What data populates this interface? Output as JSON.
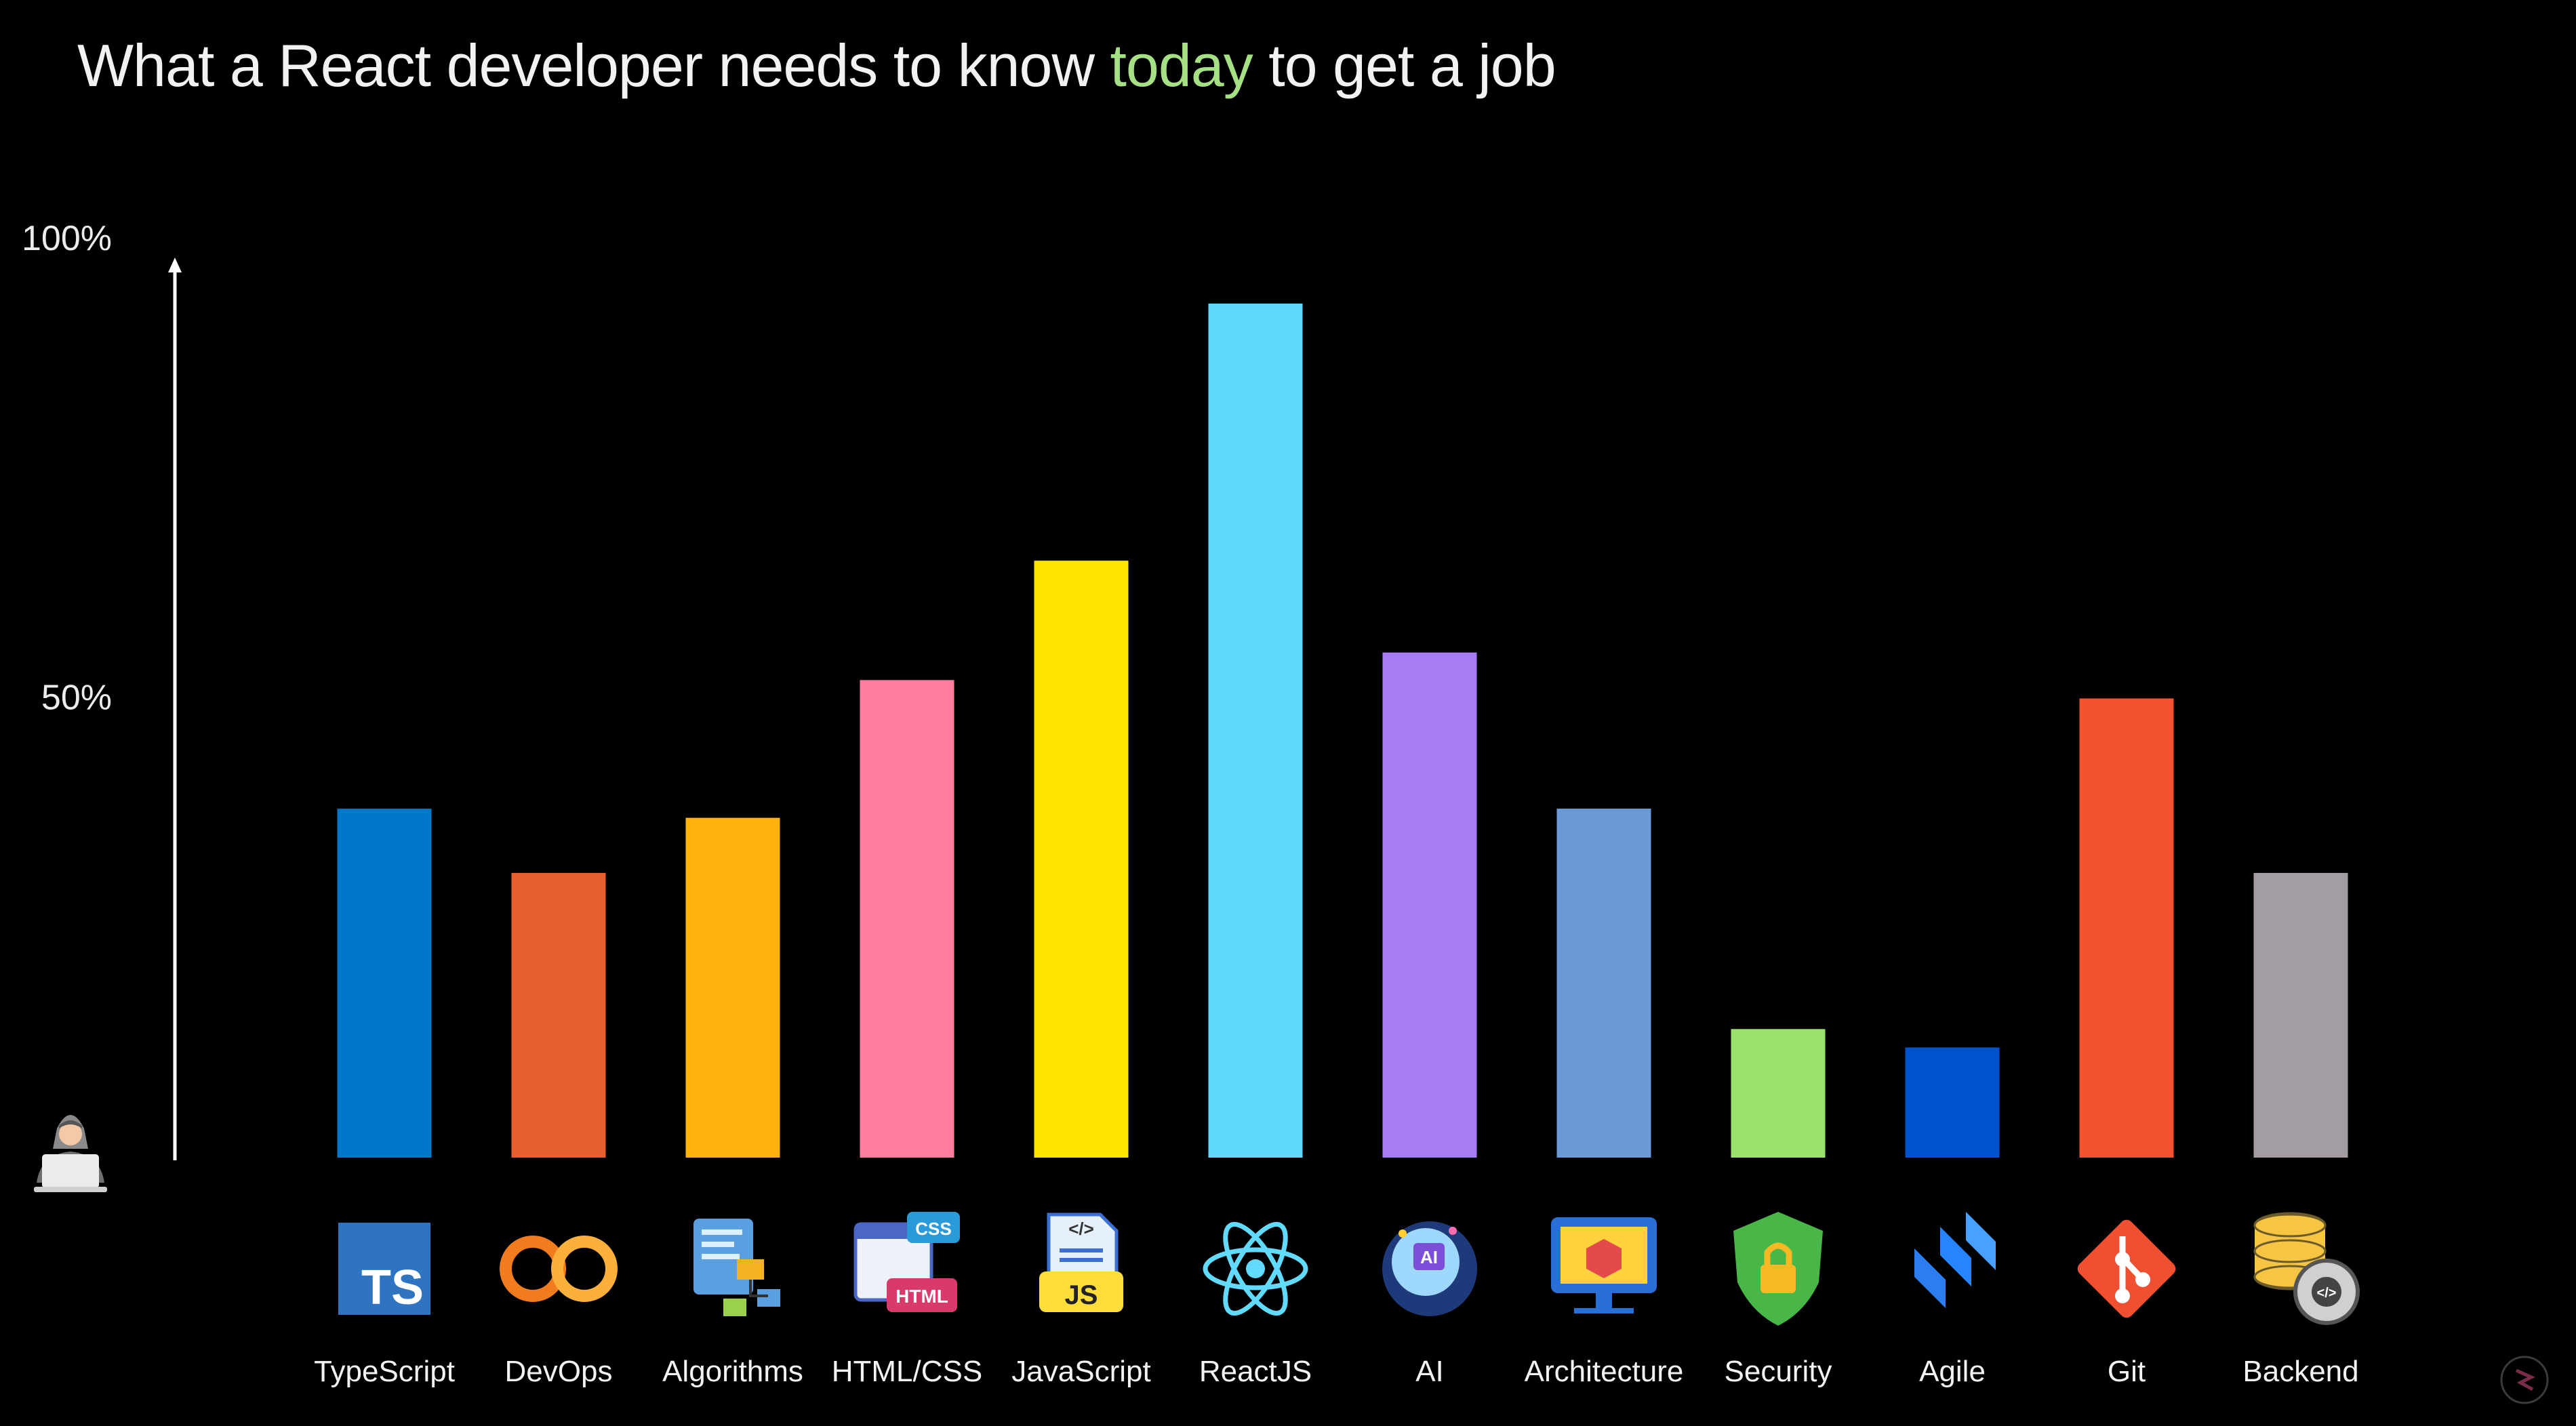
{
  "title": {
    "before": "What a React developer needs to know",
    "highlight": "today",
    "after": "to get a job"
  },
  "colors": {
    "background": "#000000",
    "title_highlight": "#a6e085"
  },
  "chart_data": {
    "type": "bar",
    "title": "What a React developer needs to know today to get a job",
    "xlabel": "",
    "ylabel": "",
    "ylim": [
      0,
      100
    ],
    "yticks": [
      {
        "value": 100,
        "label": "100%"
      },
      {
        "value": 50,
        "label": "50%"
      }
    ],
    "grid": false,
    "legend": "none",
    "categories": [
      "TypeScript",
      "DevOps",
      "Algorithms",
      "HTML/CSS",
      "JavaScript",
      "ReactJS",
      "AI",
      "Architecture",
      "Security",
      "Agile",
      "Git",
      "Backend"
    ],
    "values": [
      38,
      31,
      37,
      52,
      65,
      93,
      55,
      38,
      14,
      12,
      50,
      31
    ],
    "bar_colors": [
      "#0077c8",
      "#e8602f",
      "#ffb30f",
      "#ff7da0",
      "#ffe500",
      "#61d9ff",
      "#a67cf5",
      "#6a9bd8",
      "#9be26b",
      "#0052cc",
      "#f4512f",
      "#a39ca3"
    ],
    "icons": [
      "typescript-logo-icon",
      "devops-loop-icon",
      "algorithms-flowchart-icon",
      "html-css-windows-icon",
      "javascript-file-icon",
      "react-atom-icon",
      "ai-brain-icon",
      "architecture-blueprint-icon",
      "security-shield-lock-icon",
      "agile-jira-icon",
      "git-logo-icon",
      "backend-database-gear-icon"
    ]
  }
}
